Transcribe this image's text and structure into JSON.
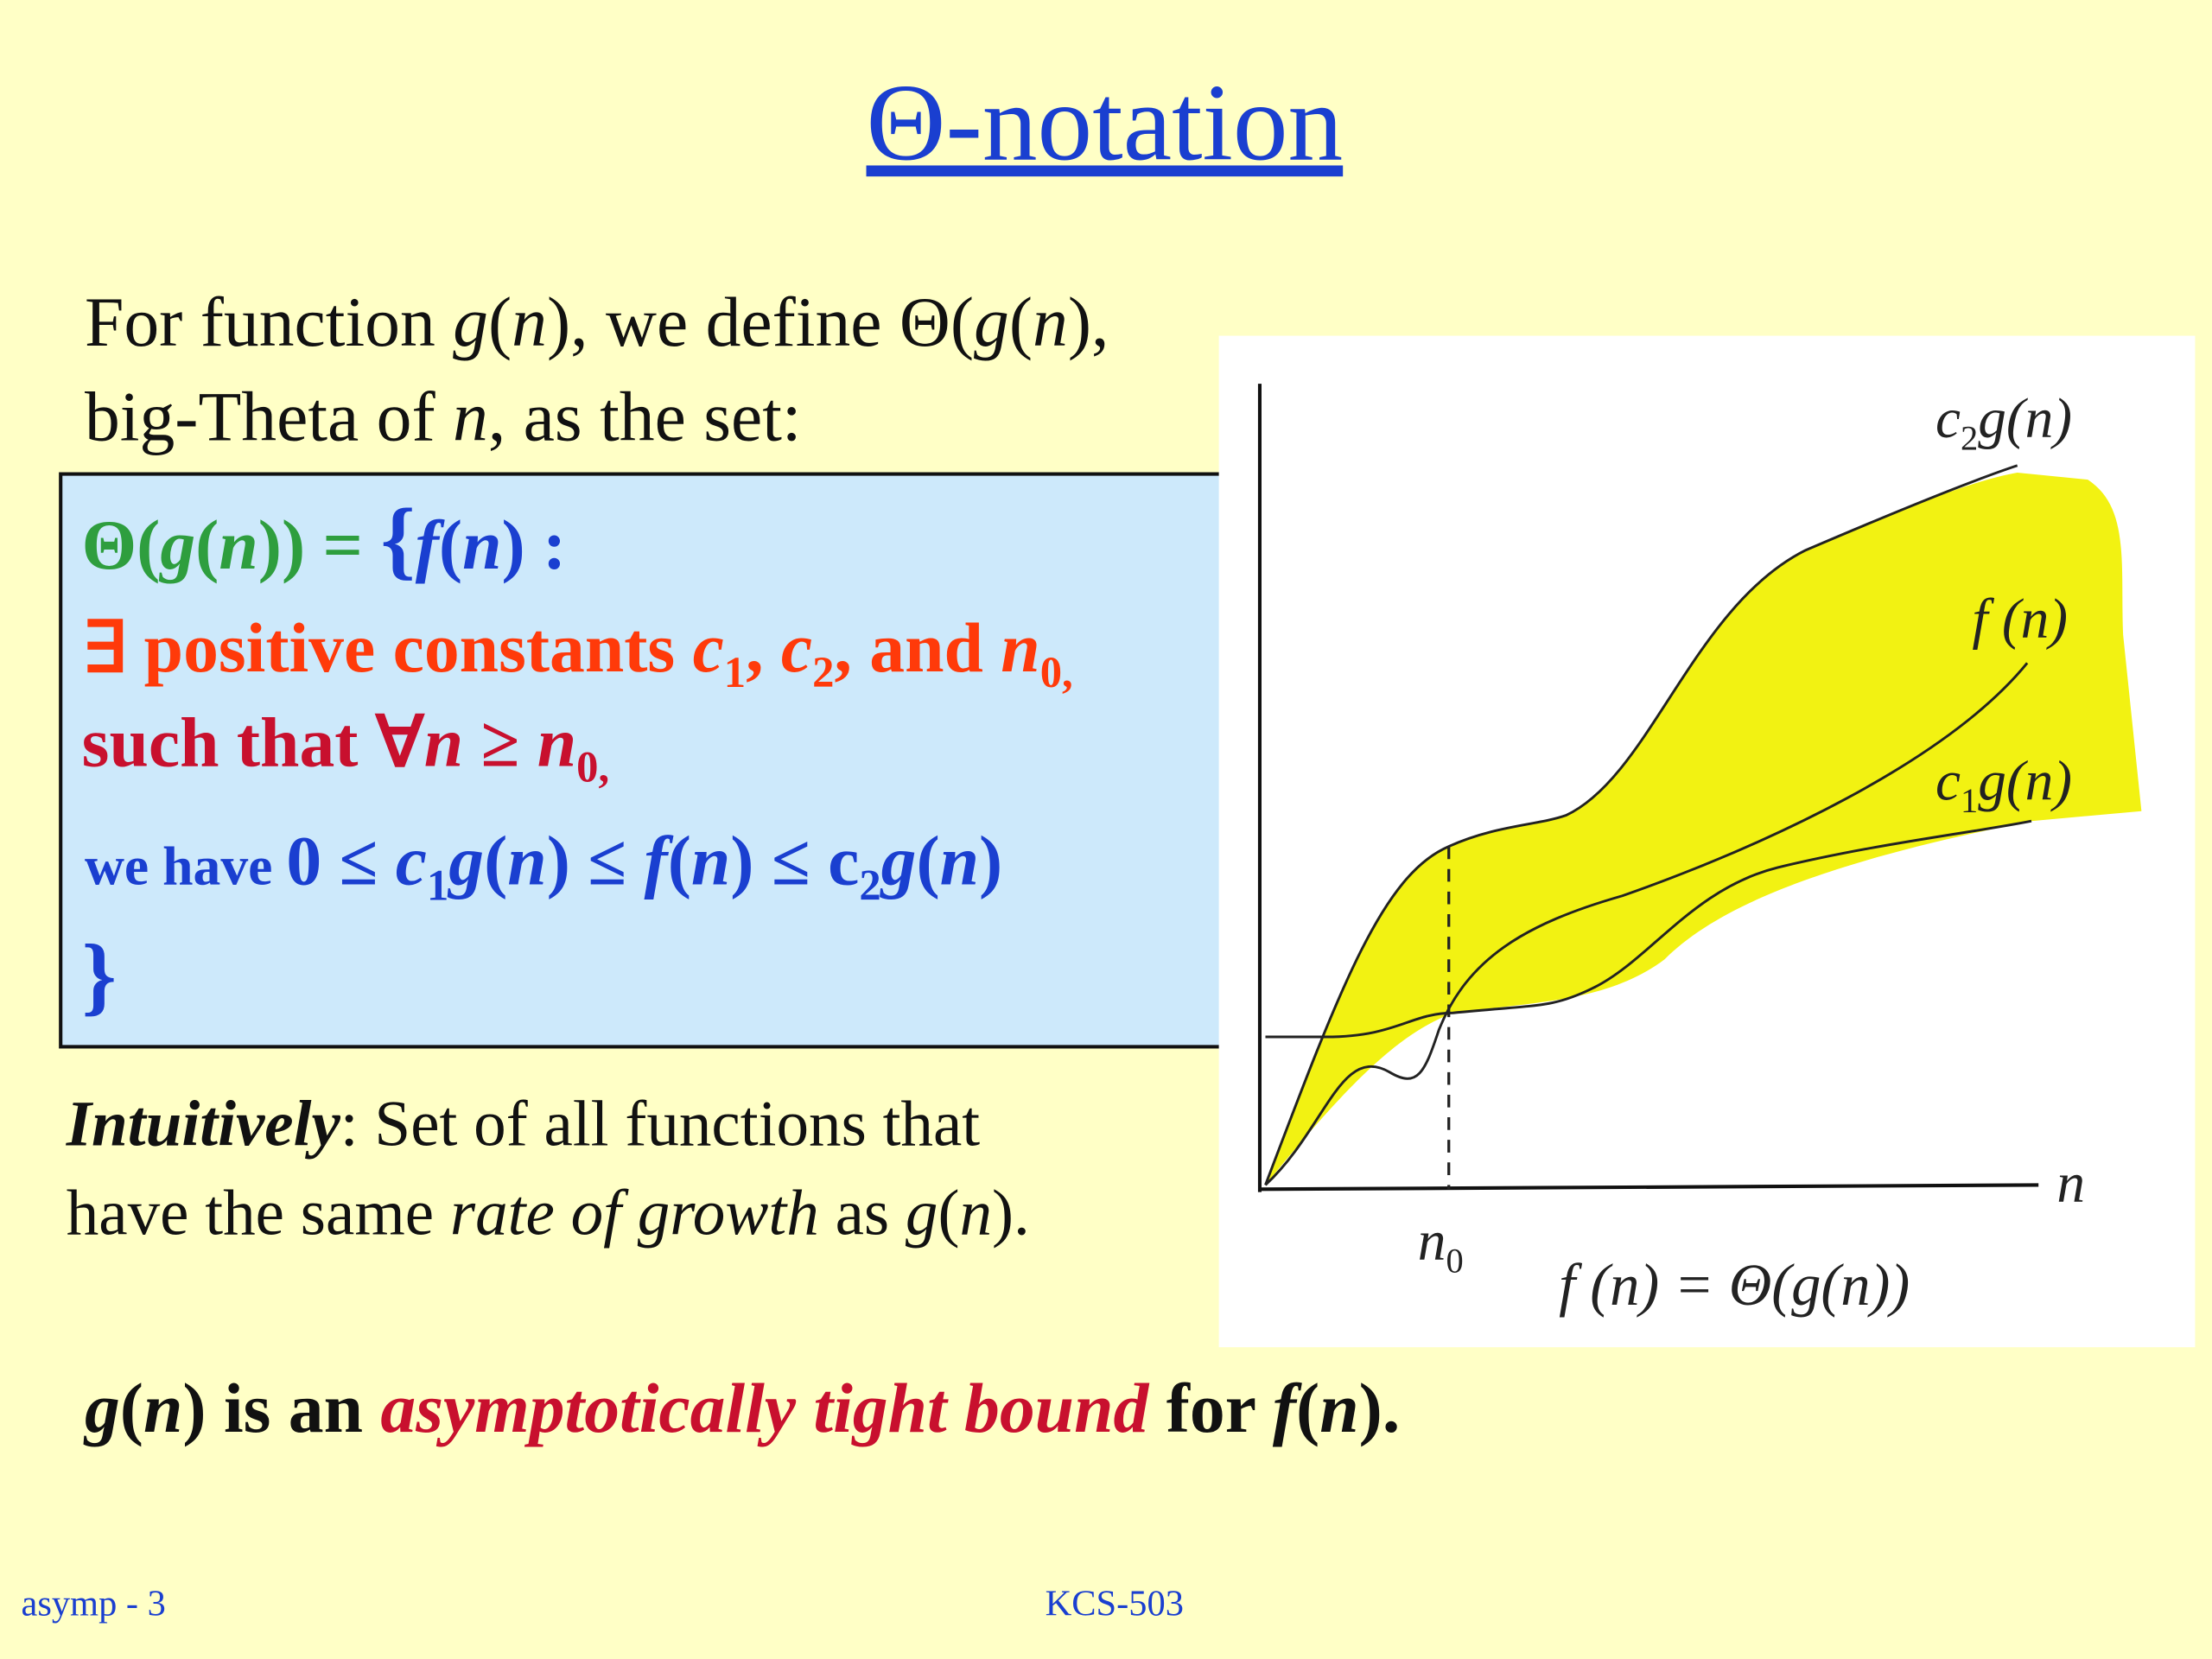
{
  "title": "Θ-notation",
  "intro": [
    [
      "For function ",
      "g",
      "(",
      "n",
      "), we define Θ(",
      "g",
      "(",
      "n",
      "),"
    ],
    [
      "big-Theta of ",
      "n",
      ", as the set:"
    ]
  ],
  "definition_box": [
    [
      "Θ(",
      "g",
      "(",
      "n",
      ")) = ",
      "{",
      "f",
      "(",
      "n",
      ") :"
    ],
    [
      "∃ positive constants ",
      "c",
      "1",
      ", ",
      "c",
      "2",
      ", and ",
      "n",
      "0,"
    ],
    [
      "such that ∀",
      "n",
      " ≥  ",
      "n",
      "0,"
    ],
    [
      "we have ",
      "0 ≤ ",
      "c",
      "1",
      "g",
      "(",
      "n",
      ") ≤  ",
      "f",
      "(",
      "n",
      ") ≤ c",
      "2",
      "g",
      "(",
      "n",
      ")"
    ],
    [
      "}"
    ]
  ],
  "intuition": [
    [
      "Intuitively",
      ": Set of all functions that"
    ],
    [
      "have the same ",
      "rate of growth",
      " as ",
      "g",
      "(",
      "n",
      ")."
    ]
  ],
  "conclusion": [
    "g",
    "(",
    "n",
    ") is an ",
    "asymptotically tight bound",
    " for ",
    "f",
    "(",
    "n",
    ")."
  ],
  "graph": {
    "upper_label": [
      "c",
      "2",
      "g(n)"
    ],
    "middle_label": "f (n)",
    "lower_label": [
      "c",
      "1",
      "g(n)"
    ],
    "x_axis_label": "n",
    "threshold_label": [
      "n",
      "0"
    ],
    "caption": "f (n) = Θ(g(n))"
  },
  "footer": {
    "left": "asymp - 3",
    "center": "KCS-503"
  }
}
